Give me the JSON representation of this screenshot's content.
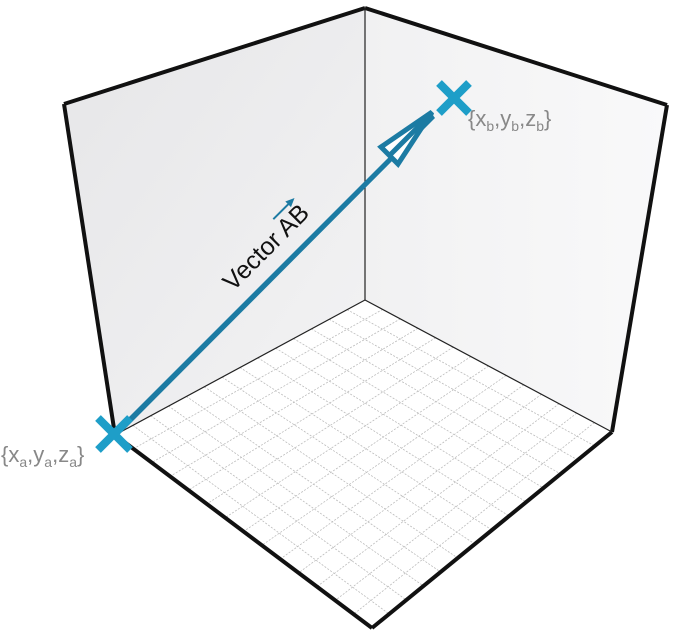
{
  "diagram": {
    "vector_label": "Vector AB",
    "vector_label_plain": "Vector ",
    "vector_label_name": "AB",
    "point_a": {
      "open": "{",
      "x": "x",
      "x_sub": "a",
      "y": "y",
      "y_sub": "a",
      "z": "z",
      "z_sub": "a",
      "close": "}"
    },
    "point_b": {
      "open": "{",
      "x": "x",
      "x_sub": "b",
      "y": "y",
      "y_sub": "b",
      "z": "z",
      "z_sub": "b",
      "close": "}"
    },
    "colors": {
      "vector": "#1c7ba3",
      "marker": "#1e9ec8",
      "label": "#888888",
      "wall_left": "#ececee",
      "wall_right": "#f5f5f6",
      "floor": "#ffffff",
      "edge": "#111111",
      "grid": "#bcbcbc"
    }
  }
}
